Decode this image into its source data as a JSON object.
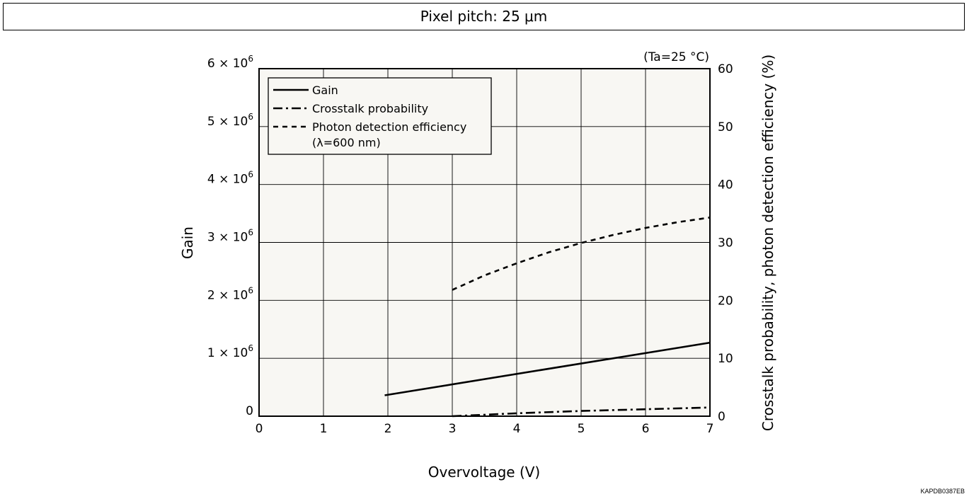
{
  "header": {
    "title": "Pixel pitch: 25 μm"
  },
  "footer": {
    "code": "KAPDB0387EB"
  },
  "chart_data": {
    "type": "line",
    "title": "Pixel pitch: 25 μm",
    "condition": "(Ta=25 °C)",
    "xlabel": "Overvoltage (V)",
    "ylabel_left": "Gain",
    "ylabel_right": "Crosstalk probability, photon detection efficiency (%)",
    "xlim": [
      0,
      7
    ],
    "ylim_left": [
      0,
      6000000
    ],
    "ylim_right": [
      0,
      60
    ],
    "x_ticks": [
      0,
      1,
      2,
      3,
      4,
      5,
      6,
      7
    ],
    "x_tick_labels": [
      "0",
      "1",
      "2",
      "3",
      "4",
      "5",
      "6",
      "7"
    ],
    "y_left_ticks": [
      0,
      1000000,
      2000000,
      3000000,
      4000000,
      5000000,
      6000000
    ],
    "y_left_tick_labels": [
      {
        "base": "0",
        "exp": ""
      },
      {
        "base": "1 × 10",
        "exp": "6"
      },
      {
        "base": "2 × 10",
        "exp": "6"
      },
      {
        "base": "3 × 10",
        "exp": "6"
      },
      {
        "base": "4 × 10",
        "exp": "6"
      },
      {
        "base": "5 × 10",
        "exp": "6"
      },
      {
        "base": "6 × 10",
        "exp": "6"
      }
    ],
    "y_right_ticks": [
      0,
      10,
      20,
      30,
      40,
      50,
      60
    ],
    "y_right_tick_labels": [
      "0",
      "10",
      "20",
      "30",
      "40",
      "50",
      "60"
    ],
    "grid": true,
    "legend_position": "top-left",
    "series": [
      {
        "name": "Gain",
        "axis": "left",
        "style": "solid",
        "x": [
          1.95,
          7.0
        ],
        "y": [
          360000,
          1270000
        ]
      },
      {
        "name": "Crosstalk probability",
        "axis": "right",
        "style": "dashdot",
        "x": [
          3.0,
          4.0,
          5.0,
          6.0,
          7.0
        ],
        "y": [
          0,
          0.5,
          0.9,
          1.2,
          1.5
        ]
      },
      {
        "name": "Photon detection efficiency",
        "name_line2": "(λ=600 nm)",
        "axis": "right",
        "style": "dashed",
        "x": [
          3.0,
          3.5,
          4.0,
          4.5,
          5.0,
          5.5,
          6.0,
          6.5,
          7.0
        ],
        "y": [
          21.8,
          24.3,
          26.4,
          28.3,
          29.9,
          31.3,
          32.5,
          33.5,
          34.3
        ]
      }
    ]
  }
}
